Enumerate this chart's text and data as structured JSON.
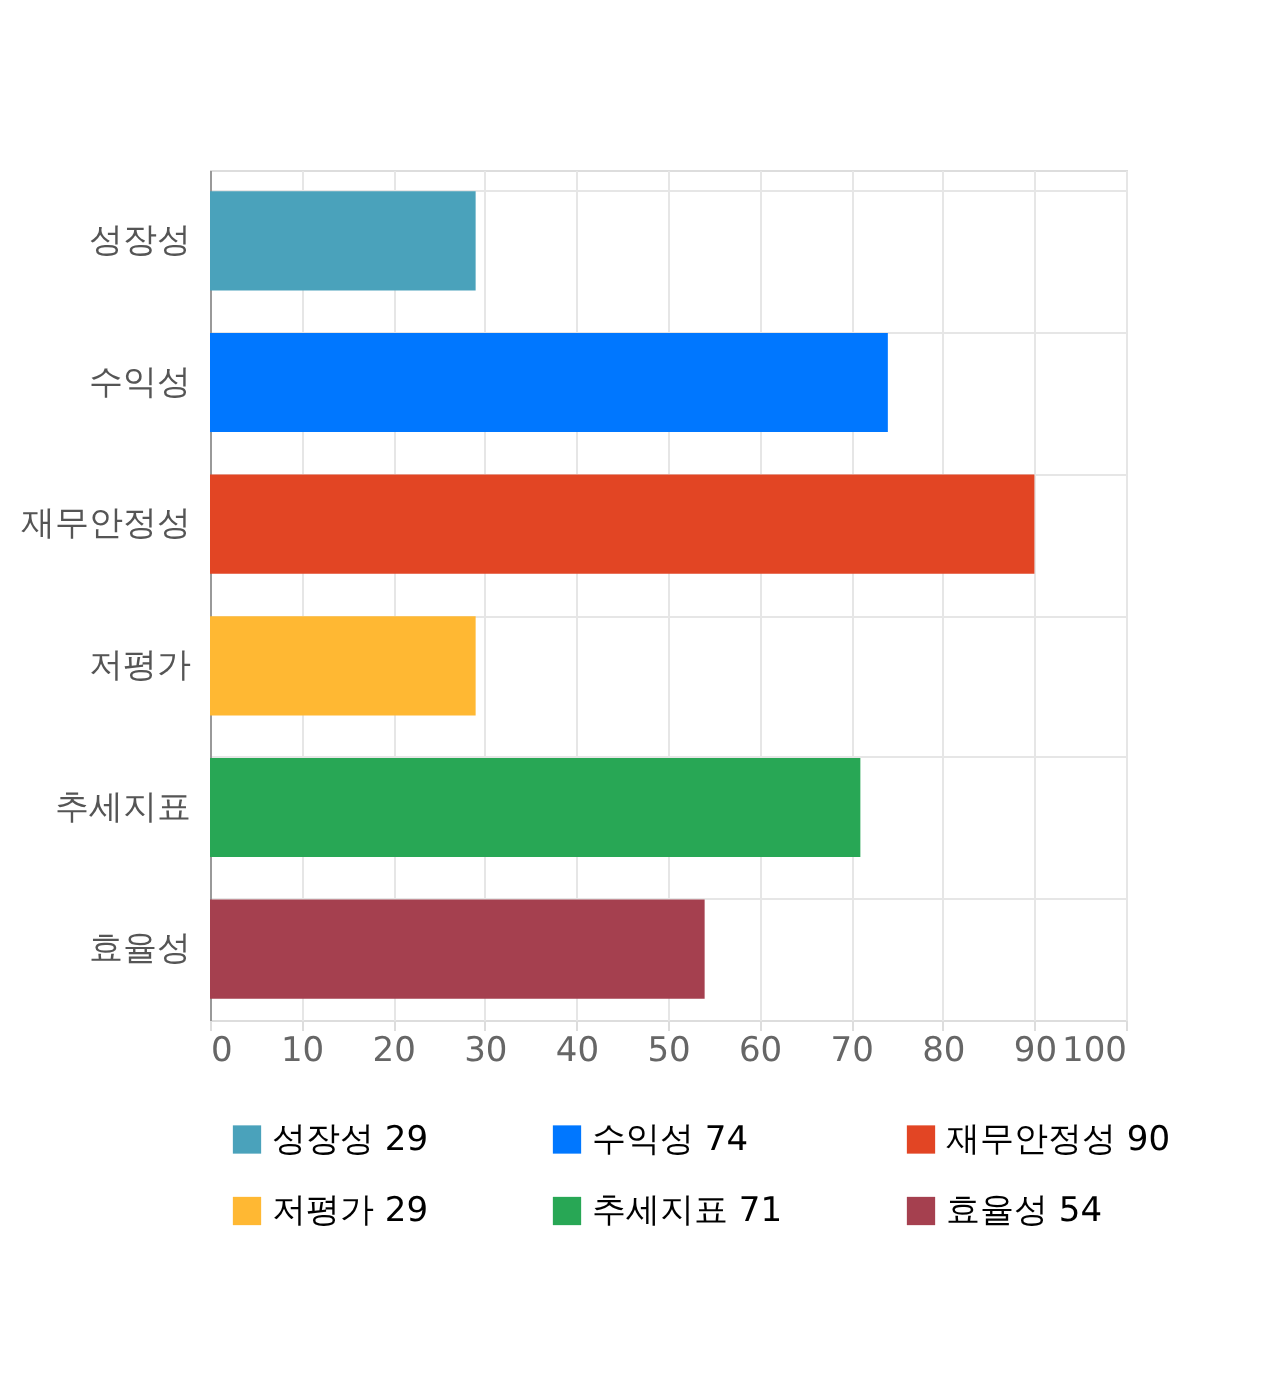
{
  "chart_data": {
    "type": "bar",
    "orientation": "horizontal",
    "categories": [
      "성장성",
      "수익성",
      "재무안정성",
      "저평가",
      "추세지표",
      "효율성"
    ],
    "series": [
      {
        "name": "성장성 29",
        "color": "#4aa2bb",
        "values": [
          29,
          null,
          null,
          null,
          null,
          null
        ]
      },
      {
        "name": "수익성 74",
        "color": "#0077ff",
        "values": [
          null,
          74,
          null,
          null,
          null,
          null
        ]
      },
      {
        "name": "재무안정성 90",
        "color": "#e24524",
        "values": [
          null,
          null,
          90,
          null,
          null,
          null
        ]
      },
      {
        "name": "저평가 29",
        "color": "#ffb833",
        "values": [
          null,
          null,
          null,
          29,
          null,
          null
        ]
      },
      {
        "name": "추세지표 71",
        "color": "#28a755",
        "values": [
          null,
          null,
          null,
          null,
          71,
          null
        ]
      },
      {
        "name": "효율성 54",
        "color": "#a5404f",
        "values": [
          null,
          null,
          null,
          null,
          null,
          54
        ]
      }
    ],
    "xlim": [
      0,
      100
    ],
    "xticks": [
      0,
      10,
      20,
      30,
      40,
      50,
      60,
      70,
      80,
      90,
      100
    ],
    "grid": true,
    "legend": "bottom"
  }
}
